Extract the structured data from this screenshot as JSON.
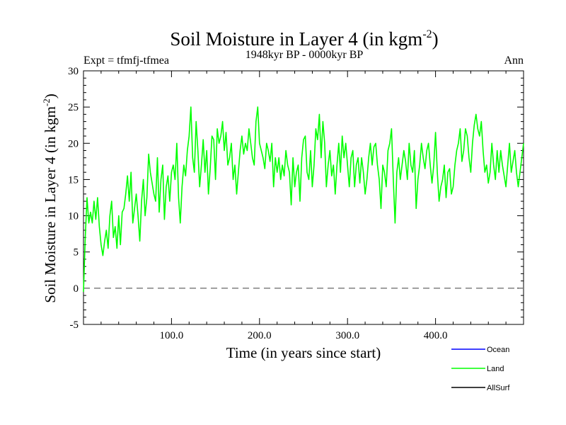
{
  "chart_data": {
    "type": "line",
    "title": "Soil Moisture in Layer 4 (in kgm",
    "title_sup": "-2",
    "title_end": ")",
    "subtitle": "1948kyr BP - 0000kyr BP",
    "left_note": "Expt = tfmfj-tfmea",
    "right_note": "Ann",
    "xlabel": "Time (in years since start)",
    "ylabel": "Soil Moisture in Layer 4 (in kgm",
    "ylabel_sup": "-2",
    "ylabel_end": ")",
    "xlim": [
      0,
      500
    ],
    "ylim": [
      -5,
      30
    ],
    "x_ticks": [
      100,
      200,
      300,
      400
    ],
    "x_tick_labels": [
      "100.0",
      "200.0",
      "300.0",
      "400.0"
    ],
    "y_ticks": [
      -5,
      0,
      5,
      10,
      15,
      20,
      25,
      30
    ],
    "y_tick_labels": [
      "-5",
      "0",
      "5",
      "10",
      "15",
      "20",
      "25",
      "30"
    ],
    "reference_line": 0,
    "legend": [
      {
        "name": "Ocean",
        "color": "#0000ff"
      },
      {
        "name": "Land",
        "color": "#00ff00"
      },
      {
        "name": "AllSurf",
        "color": "#000000"
      }
    ],
    "series": [
      {
        "name": "Land",
        "color": "#00ff00",
        "x": [
          0,
          2,
          4,
          6,
          8,
          10,
          12,
          14,
          16,
          18,
          20,
          22,
          24,
          26,
          28,
          30,
          32,
          34,
          36,
          38,
          40,
          42,
          44,
          46,
          48,
          50,
          52,
          54,
          56,
          58,
          60,
          62,
          64,
          66,
          68,
          70,
          72,
          74,
          76,
          78,
          80,
          82,
          84,
          86,
          88,
          90,
          92,
          94,
          96,
          98,
          100,
          102,
          104,
          106,
          108,
          110,
          112,
          114,
          116,
          118,
          120,
          122,
          124,
          126,
          128,
          130,
          132,
          134,
          136,
          138,
          140,
          142,
          144,
          146,
          148,
          150,
          152,
          154,
          156,
          158,
          160,
          162,
          164,
          166,
          168,
          170,
          172,
          174,
          176,
          178,
          180,
          182,
          184,
          186,
          188,
          190,
          192,
          194,
          196,
          198,
          200,
          202,
          204,
          206,
          208,
          210,
          212,
          214,
          216,
          218,
          220,
          222,
          224,
          226,
          228,
          230,
          232,
          234,
          236,
          238,
          240,
          242,
          244,
          246,
          248,
          250,
          252,
          254,
          256,
          258,
          260,
          262,
          264,
          266,
          268,
          270,
          272,
          274,
          276,
          278,
          280,
          282,
          284,
          286,
          288,
          290,
          292,
          294,
          296,
          298,
          300,
          302,
          304,
          306,
          308,
          310,
          312,
          314,
          316,
          318,
          320,
          322,
          324,
          326,
          328,
          330,
          332,
          334,
          336,
          338,
          340,
          342,
          344,
          346,
          348,
          350,
          352,
          354,
          356,
          358,
          360,
          362,
          364,
          366,
          368,
          370,
          372,
          374,
          376,
          378,
          380,
          382,
          384,
          386,
          388,
          390,
          392,
          394,
          396,
          398,
          400,
          402,
          404,
          406,
          408,
          410,
          412,
          414,
          416,
          418,
          420,
          422,
          424,
          426,
          428,
          430,
          432,
          434,
          436,
          438,
          440,
          442,
          444,
          446,
          448,
          450,
          452,
          454,
          456,
          458,
          460,
          462,
          464,
          466,
          468,
          470,
          472,
          474,
          476,
          478,
          480,
          482,
          484,
          486,
          488,
          490,
          492,
          494,
          496,
          498,
          500
        ],
        "values": [
          -0.5,
          7,
          12.5,
          9,
          10.5,
          9,
          12,
          9.5,
          12.5,
          8.5,
          6,
          4.5,
          6.5,
          8,
          5.5,
          10,
          12,
          7,
          8.5,
          5.5,
          10,
          6,
          10.5,
          11,
          13,
          15.5,
          12,
          16,
          9,
          11,
          13,
          10,
          6.5,
          12,
          15,
          10,
          12.5,
          18.5,
          16,
          14.5,
          13,
          12,
          18,
          10.5,
          15,
          17,
          9.5,
          14,
          15.5,
          12,
          16,
          17,
          15,
          20,
          12.5,
          9,
          14,
          17,
          15.5,
          19,
          21,
          25,
          18,
          16,
          23,
          19,
          14,
          17,
          20.5,
          16,
          19,
          13,
          16.5,
          21,
          20.5,
          15,
          22,
          20,
          21,
          23,
          19,
          21.5,
          17,
          18,
          20,
          15,
          17,
          13,
          16,
          19,
          21,
          18.5,
          20,
          19,
          22,
          20,
          18,
          17,
          23,
          25,
          20,
          19,
          18,
          16.5,
          20,
          19,
          17.5,
          20,
          14,
          18,
          16,
          18,
          15,
          17,
          15.5,
          19,
          17,
          16,
          11.5,
          18,
          14,
          16,
          17,
          12,
          18,
          20.5,
          21,
          16,
          15,
          19,
          14,
          17,
          22,
          20.5,
          24,
          18,
          23,
          20,
          14,
          17,
          19,
          15.5,
          17,
          13,
          17,
          20,
          16,
          21,
          18,
          20,
          17,
          14,
          18,
          19,
          14,
          17,
          18,
          14.5,
          18,
          16,
          13,
          15,
          18,
          20,
          17,
          19.5,
          20,
          17,
          15,
          11,
          17,
          16,
          14,
          19,
          20,
          22,
          15,
          9,
          16,
          18,
          15,
          17,
          19,
          17.5,
          15,
          20,
          17,
          16,
          19,
          11,
          15,
          17,
          20,
          18,
          16.5,
          19,
          20,
          17,
          14.5,
          17,
          21.5,
          16,
          12,
          14,
          15,
          17,
          12.5,
          16,
          16.5,
          13,
          14,
          17,
          19,
          20,
          22,
          17.5,
          19,
          22,
          21,
          18,
          16,
          20,
          22.5,
          24,
          22,
          21,
          23,
          19,
          16,
          17,
          14.5,
          16,
          20,
          17,
          15,
          19,
          16,
          19,
          17,
          15.5,
          14,
          17,
          20,
          16,
          17.5,
          19,
          16,
          14,
          16,
          18,
          20
        ]
      }
    ]
  }
}
